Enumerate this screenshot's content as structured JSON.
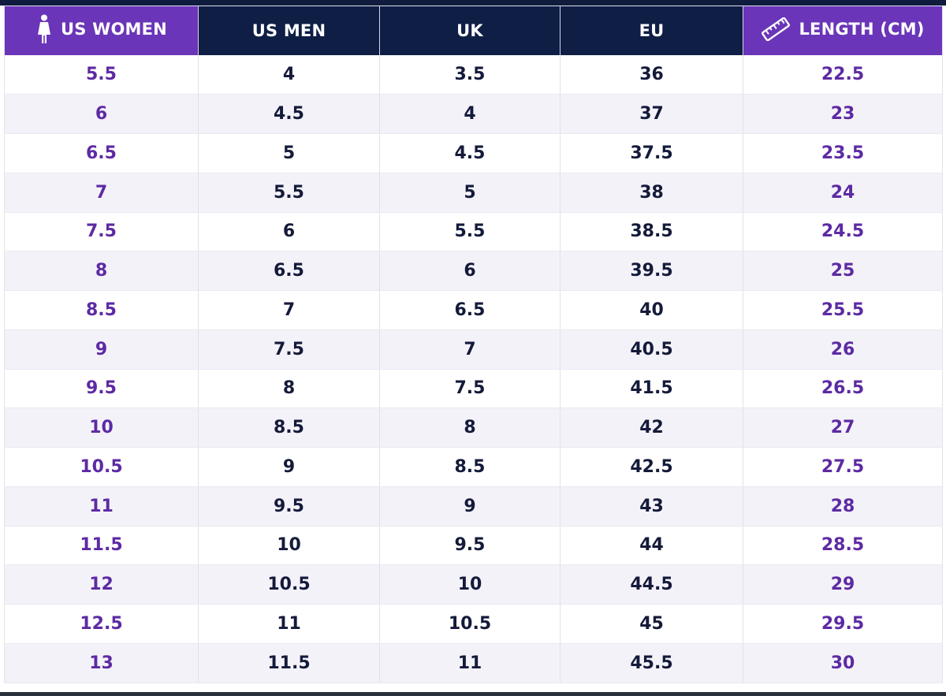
{
  "table": {
    "headers": [
      {
        "label": "US WOMEN",
        "icon": "woman-icon",
        "style": "accent"
      },
      {
        "label": "US MEN",
        "icon": "",
        "style": "dark"
      },
      {
        "label": "UK",
        "icon": "",
        "style": "dark"
      },
      {
        "label": "EU",
        "icon": "",
        "style": "dark"
      },
      {
        "label": "LENGTH (CM)",
        "icon": "ruler-icon",
        "style": "accent"
      }
    ],
    "rows": [
      [
        "5.5",
        "4",
        "3.5",
        "36",
        "22.5"
      ],
      [
        "6",
        "4.5",
        "4",
        "37",
        "23"
      ],
      [
        "6.5",
        "5",
        "4.5",
        "37.5",
        "23.5"
      ],
      [
        "7",
        "5.5",
        "5",
        "38",
        "24"
      ],
      [
        "7.5",
        "6",
        "5.5",
        "38.5",
        "24.5"
      ],
      [
        "8",
        "6.5",
        "6",
        "39.5",
        "25"
      ],
      [
        "8.5",
        "7",
        "6.5",
        "40",
        "25.5"
      ],
      [
        "9",
        "7.5",
        "7",
        "40.5",
        "26"
      ],
      [
        "9.5",
        "8",
        "7.5",
        "41.5",
        "26.5"
      ],
      [
        "10",
        "8.5",
        "8",
        "42",
        "27"
      ],
      [
        "10.5",
        "9",
        "8.5",
        "42.5",
        "27.5"
      ],
      [
        "11",
        "9.5",
        "9",
        "43",
        "28"
      ],
      [
        "11.5",
        "10",
        "9.5",
        "44",
        "28.5"
      ],
      [
        "12",
        "10.5",
        "10",
        "44.5",
        "29"
      ],
      [
        "12.5",
        "11",
        "10.5",
        "45",
        "29.5"
      ],
      [
        "13",
        "11.5",
        "11",
        "45.5",
        "30"
      ]
    ]
  },
  "colors": {
    "accent": "#6a35b8",
    "dark": "#0e1e45",
    "purple_text": "#5d2aa3",
    "navy_text": "#141a3a",
    "stripe": "#f4f2f9"
  },
  "chart_data": {
    "type": "table",
    "columns": [
      "US WOMEN",
      "US MEN",
      "UK",
      "EU",
      "LENGTH (CM)"
    ],
    "rows": [
      [
        "5.5",
        "4",
        "3.5",
        "36",
        "22.5"
      ],
      [
        "6",
        "4.5",
        "4",
        "37",
        "23"
      ],
      [
        "6.5",
        "5",
        "4.5",
        "37.5",
        "23.5"
      ],
      [
        "7",
        "5.5",
        "5",
        "38",
        "24"
      ],
      [
        "7.5",
        "6",
        "5.5",
        "38.5",
        "24.5"
      ],
      [
        "8",
        "6.5",
        "6",
        "39.5",
        "25"
      ],
      [
        "8.5",
        "7",
        "6.5",
        "40",
        "25.5"
      ],
      [
        "9",
        "7.5",
        "7",
        "40.5",
        "26"
      ],
      [
        "9.5",
        "8",
        "7.5",
        "41.5",
        "26.5"
      ],
      [
        "10",
        "8.5",
        "8",
        "42",
        "27"
      ],
      [
        "10.5",
        "9",
        "8.5",
        "42.5",
        "27.5"
      ],
      [
        "11",
        "9.5",
        "9",
        "43",
        "28"
      ],
      [
        "11.5",
        "10",
        "9.5",
        "44",
        "28.5"
      ],
      [
        "12",
        "10.5",
        "10",
        "44.5",
        "29"
      ],
      [
        "12.5",
        "11",
        "10.5",
        "45",
        "29.5"
      ],
      [
        "13",
        "11.5",
        "11",
        "45.5",
        "30"
      ]
    ]
  }
}
